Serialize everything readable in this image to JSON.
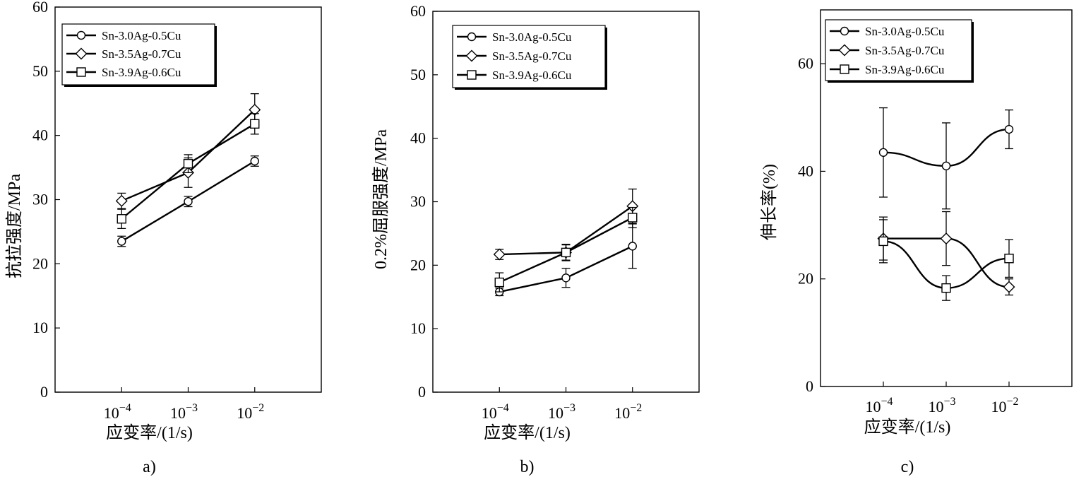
{
  "chart_data": [
    {
      "type": "line",
      "caption": "a)",
      "ylabel": "抗拉强度/MPa",
      "xlabel": "应变率/(1/s)",
      "x_tick_base": "10",
      "x": [
        -4,
        -3,
        -2
      ],
      "x_tick_exponents": [
        "−4",
        "−3",
        "−2"
      ],
      "xlim": [
        -5,
        -1
      ],
      "ylim": [
        0,
        60
      ],
      "yticks": [
        0,
        10,
        20,
        30,
        40,
        50,
        60
      ],
      "ytick_labels": [
        "0",
        "10",
        "20",
        "30",
        "40",
        "50",
        "60"
      ],
      "legend": [
        "Sn-3.0Ag-0.5Cu",
        "Sn-3.5Ag-0.7Cu",
        "Sn-3.9Ag-0.6Cu"
      ],
      "series": [
        {
          "name": "Sn-3.0Ag-0.5Cu",
          "marker": "circle",
          "values": [
            23.5,
            29.7,
            36.0
          ],
          "err": [
            0.8,
            0.8,
            0.8
          ]
        },
        {
          "name": "Sn-3.5Ag-0.7Cu",
          "marker": "diamond",
          "values": [
            29.8,
            34.2,
            44.0
          ],
          "err": [
            1.2,
            2.3,
            2.5
          ]
        },
        {
          "name": "Sn-3.9Ag-0.6Cu",
          "marker": "square",
          "values": [
            27.0,
            35.6,
            41.8
          ],
          "err": [
            1.5,
            1.4,
            1.6
          ]
        }
      ]
    },
    {
      "type": "line",
      "caption": "b)",
      "ylabel": "0.2%屈服强度/MPa",
      "xlabel": "应变率/(1/s)",
      "x_tick_base": "10",
      "x": [
        -4,
        -3,
        -2
      ],
      "x_tick_exponents": [
        "−4",
        "−3",
        "−2"
      ],
      "xlim": [
        -5,
        -1
      ],
      "ylim": [
        0,
        60
      ],
      "yticks": [
        0,
        10,
        20,
        30,
        40,
        50,
        60
      ],
      "ytick_labels": [
        "0",
        "10",
        "20",
        "30",
        "40",
        "50",
        "60"
      ],
      "legend": [
        "Sn-3.0Ag-0.5Cu",
        "Sn-3.5Ag-0.7Cu",
        "Sn-3.9Ag-0.6Cu"
      ],
      "series": [
        {
          "name": "Sn-3.0Ag-0.5Cu",
          "marker": "circle",
          "values": [
            15.8,
            18.0,
            23.0
          ],
          "err": [
            0.6,
            1.5,
            3.5
          ]
        },
        {
          "name": "Sn-3.5Ag-0.7Cu",
          "marker": "diamond",
          "values": [
            21.7,
            22.0,
            29.3
          ],
          "err": [
            0.8,
            1.2,
            2.7
          ]
        },
        {
          "name": "Sn-3.9Ag-0.6Cu",
          "marker": "square",
          "values": [
            17.3,
            22.0,
            27.5
          ],
          "err": [
            1.5,
            1.3,
            1.6
          ]
        }
      ]
    },
    {
      "type": "line",
      "caption": "c)",
      "ylabel": "伸长率(%)",
      "xlabel": "应变率/(1/s)",
      "x_tick_base": "10",
      "x": [
        -4,
        -3,
        -2
      ],
      "x_tick_exponents": [
        "−4",
        "−3",
        "−2"
      ],
      "xlim": [
        -5,
        -1
      ],
      "ylim": [
        0,
        70
      ],
      "yticks": [
        0,
        20,
        40,
        60
      ],
      "ytick_labels": [
        "0",
        "20",
        "40",
        "60"
      ],
      "legend": [
        "Sn-3.0Ag-0.5Cu",
        "Sn-3.5Ag-0.7Cu",
        "Sn-3.9Ag-0.6Cu"
      ],
      "series": [
        {
          "name": "Sn-3.0Ag-0.5Cu",
          "marker": "circle",
          "values": [
            43.5,
            41.0,
            47.8
          ],
          "err": [
            8.3,
            8.0,
            3.6
          ]
        },
        {
          "name": "Sn-3.5Ag-0.7Cu",
          "marker": "diamond",
          "values": [
            27.5,
            27.5,
            18.5
          ],
          "err": [
            4.0,
            5.0,
            1.5
          ]
        },
        {
          "name": "Sn-3.9Ag-0.6Cu",
          "marker": "square",
          "values": [
            27.0,
            18.3,
            23.8
          ],
          "err": [
            4.0,
            2.3,
            3.5
          ]
        }
      ]
    }
  ]
}
